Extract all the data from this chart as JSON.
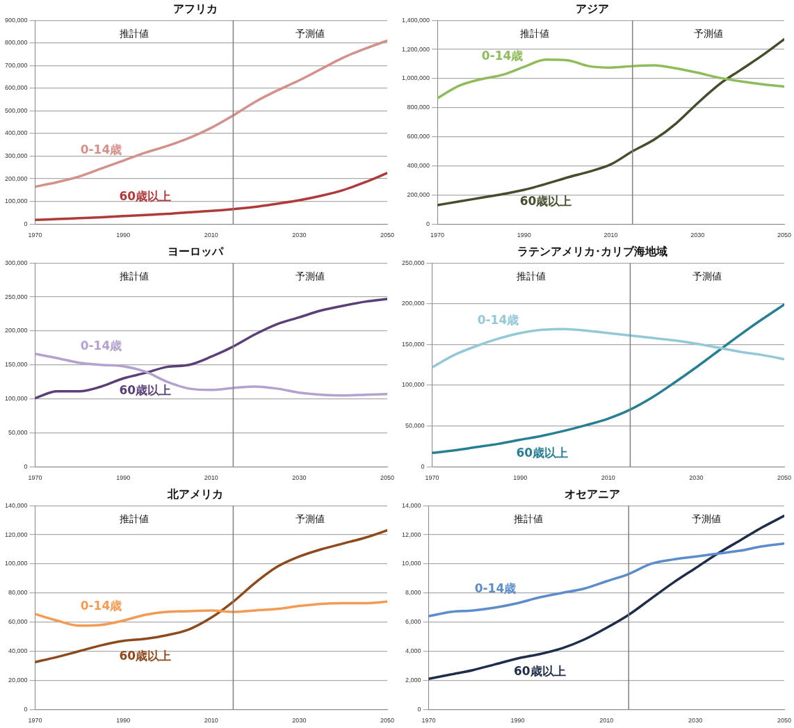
{
  "chart_data": [
    {
      "type": "line",
      "title": "アフリカ",
      "x": [
        1970,
        1975,
        1980,
        1985,
        1990,
        1995,
        2000,
        2005,
        2010,
        2015,
        2020,
        2025,
        2030,
        2035,
        2040,
        2045,
        2050
      ],
      "xlim": [
        1970,
        2050
      ],
      "xticks": [
        1970,
        1990,
        2010,
        2030,
        2050
      ],
      "ylim": [
        0,
        900000
      ],
      "yticks": [
        {
          "value": 0,
          "label": "0"
        },
        {
          "value": 100000,
          "label": "100,000"
        },
        {
          "value": 200000,
          "label": "200,000"
        },
        {
          "value": 300000,
          "label": "300,000"
        },
        {
          "value": 400000,
          "label": "400,000"
        },
        {
          "value": 500000,
          "label": "500,000"
        },
        {
          "value": 600000,
          "label": "600,000"
        },
        {
          "value": 700000,
          "label": "700,000"
        },
        {
          "value": 800000,
          "label": "800,000"
        },
        {
          "value": 900000,
          "label": "900,000"
        }
      ],
      "grid": "y",
      "legend": false,
      "marker": "none",
      "ref_lines": [
        {
          "axis": "x",
          "value": 2015,
          "color": "#808080"
        }
      ],
      "annotations": [
        "推計値",
        "予測値"
      ],
      "series": [
        {
          "name": "0-14歳",
          "color": "#d4908a",
          "values": [
            165000,
            185000,
            210000,
            245000,
            280000,
            315000,
            345000,
            380000,
            425000,
            480000,
            540000,
            590000,
            635000,
            685000,
            735000,
            775000,
            810000
          ]
        },
        {
          "name": "60歳以上",
          "color": "#b03a3a",
          "values": [
            18000,
            22000,
            26000,
            30000,
            35000,
            40000,
            45000,
            52000,
            58000,
            66000,
            76000,
            90000,
            105000,
            125000,
            150000,
            185000,
            225000
          ]
        }
      ]
    },
    {
      "type": "line",
      "title": "アジア",
      "x": [
        1970,
        1975,
        1980,
        1985,
        1990,
        1995,
        2000,
        2005,
        2010,
        2015,
        2020,
        2025,
        2030,
        2035,
        2040,
        2045,
        2050
      ],
      "xlim": [
        1970,
        2050
      ],
      "xticks": [
        1970,
        1990,
        2010,
        2030,
        2050
      ],
      "ylim": [
        0,
        1400000
      ],
      "yticks": [
        {
          "value": 0,
          "label": "0"
        },
        {
          "value": 200000,
          "label": "200,000"
        },
        {
          "value": 400000,
          "label": "400,000"
        },
        {
          "value": 600000,
          "label": "600,000"
        },
        {
          "value": 800000,
          "label": "800,000"
        },
        {
          "value": 1000000,
          "label": "1,000,000"
        },
        {
          "value": 1200000,
          "label": "1,200,000"
        },
        {
          "value": 1400000,
          "label": "1,400,000"
        }
      ],
      "grid": "y",
      "legend": false,
      "marker": "none",
      "ref_lines": [
        {
          "axis": "x",
          "value": 2015,
          "color": "#808080"
        }
      ],
      "annotations": [
        "推計値",
        "予測値"
      ],
      "series": [
        {
          "name": "0-14歳",
          "color": "#8fbc5a",
          "values": [
            865000,
            950000,
            995000,
            1025000,
            1080000,
            1130000,
            1125000,
            1085000,
            1075000,
            1085000,
            1090000,
            1070000,
            1040000,
            1005000,
            980000,
            960000,
            945000
          ]
        },
        {
          "name": "60歳以上",
          "color": "#434e2c",
          "values": [
            130000,
            155000,
            180000,
            205000,
            235000,
            275000,
            320000,
            360000,
            410000,
            500000,
            580000,
            690000,
            830000,
            960000,
            1060000,
            1160000,
            1270000
          ]
        }
      ]
    },
    {
      "type": "line",
      "title": "ヨーロッパ",
      "x": [
        1970,
        1975,
        1980,
        1985,
        1990,
        1995,
        2000,
        2005,
        2010,
        2015,
        2020,
        2025,
        2030,
        2035,
        2040,
        2045,
        2050
      ],
      "xlim": [
        1970,
        2050
      ],
      "xticks": [
        1970,
        1990,
        2010,
        2030,
        2050
      ],
      "ylim": [
        0,
        300000
      ],
      "yticks": [
        {
          "value": 0,
          "label": "0"
        },
        {
          "value": 50000,
          "label": "50,000"
        },
        {
          "value": 100000,
          "label": "100,000"
        },
        {
          "value": 150000,
          "label": "150,000"
        },
        {
          "value": 200000,
          "label": "200,000"
        },
        {
          "value": 250000,
          "label": "250,000"
        },
        {
          "value": 300000,
          "label": "300,000"
        }
      ],
      "grid": "y",
      "legend": false,
      "marker": "none",
      "ref_lines": [
        {
          "axis": "x",
          "value": 2015,
          "color": "#808080"
        }
      ],
      "annotations": [
        "推計値",
        "予測値"
      ],
      "series": [
        {
          "name": "0-14歳",
          "color": "#b3a2cf",
          "values": [
            166000,
            160000,
            153000,
            150000,
            148000,
            140000,
            125000,
            115000,
            113000,
            116000,
            118000,
            115000,
            109000,
            106000,
            105000,
            106000,
            107000
          ]
        },
        {
          "name": "60歳以上",
          "color": "#5a3f78",
          "values": [
            101000,
            111000,
            111000,
            118000,
            130000,
            138000,
            147000,
            150000,
            162000,
            177000,
            195000,
            210000,
            220000,
            230000,
            237000,
            243000,
            247000
          ]
        }
      ]
    },
    {
      "type": "line",
      "title": "ラテンアメリカ･カリブ海地域",
      "x": [
        1970,
        1975,
        1980,
        1985,
        1990,
        1995,
        2000,
        2005,
        2010,
        2015,
        2020,
        2025,
        2030,
        2035,
        2040,
        2045,
        2050
      ],
      "xlim": [
        1970,
        2050
      ],
      "xticks": [
        1970,
        1990,
        2010,
        2030,
        2050
      ],
      "ylim": [
        0,
        250000
      ],
      "yticks": [
        {
          "value": 0,
          "label": "0"
        },
        {
          "value": 50000,
          "label": "50,000"
        },
        {
          "value": 100000,
          "label": "100,000"
        },
        {
          "value": 150000,
          "label": "150,000"
        },
        {
          "value": 200000,
          "label": "200,000"
        },
        {
          "value": 250000,
          "label": "250,000"
        }
      ],
      "grid": "y",
      "legend": false,
      "marker": "none",
      "ref_lines": [
        {
          "axis": "x",
          "value": 2015,
          "color": "#808080"
        }
      ],
      "annotations": [
        "推計値",
        "予測値"
      ],
      "series": [
        {
          "name": "0-14歳",
          "color": "#93c9d6",
          "values": [
            122000,
            137000,
            148000,
            157000,
            164000,
            168000,
            169000,
            167000,
            164000,
            161000,
            158000,
            155000,
            151000,
            146000,
            141000,
            137000,
            132000
          ]
        },
        {
          "name": "60歳以上",
          "color": "#277f94",
          "values": [
            17000,
            20000,
            24000,
            28000,
            33000,
            38000,
            44000,
            51000,
            59000,
            70000,
            85000,
            103000,
            122000,
            142000,
            162000,
            181000,
            199000
          ]
        }
      ]
    },
    {
      "type": "line",
      "title": "北アメリカ",
      "x": [
        1970,
        1975,
        1980,
        1985,
        1990,
        1995,
        2000,
        2005,
        2010,
        2015,
        2020,
        2025,
        2030,
        2035,
        2040,
        2045,
        2050
      ],
      "xlim": [
        1970,
        2050
      ],
      "xticks": [
        1970,
        1990,
        2010,
        2030,
        2050
      ],
      "ylim": [
        0,
        140000
      ],
      "yticks": [
        {
          "value": 0,
          "label": "0"
        },
        {
          "value": 20000,
          "label": "20,000"
        },
        {
          "value": 40000,
          "label": "40,000"
        },
        {
          "value": 60000,
          "label": "60,000"
        },
        {
          "value": 80000,
          "label": "80,000"
        },
        {
          "value": 100000,
          "label": "100,000"
        },
        {
          "value": 120000,
          "label": "120,000"
        },
        {
          "value": 140000,
          "label": "140,000"
        }
      ],
      "grid": "y",
      "legend": false,
      "marker": "none",
      "ref_lines": [
        {
          "axis": "x",
          "value": 2015,
          "color": "#808080"
        }
      ],
      "annotations": [
        "推計値",
        "予測値"
      ],
      "series": [
        {
          "name": "0-14歳",
          "color": "#f39b52",
          "values": [
            65500,
            61000,
            57500,
            58000,
            61000,
            65000,
            67000,
            67500,
            68000,
            67000,
            68000,
            69000,
            71000,
            72500,
            73000,
            73000,
            74000
          ]
        },
        {
          "name": "60歳以上",
          "color": "#8e4a1c",
          "values": [
            32500,
            36000,
            40000,
            44000,
            47000,
            48500,
            51000,
            55000,
            63000,
            74000,
            87000,
            98000,
            105000,
            110000,
            114000,
            118000,
            123000
          ]
        }
      ]
    },
    {
      "type": "line",
      "title": "オセアニア",
      "x": [
        1970,
        1975,
        1980,
        1985,
        1990,
        1995,
        2000,
        2005,
        2010,
        2015,
        2020,
        2025,
        2030,
        2035,
        2040,
        2045,
        2050
      ],
      "xlim": [
        1970,
        2050
      ],
      "xticks": [
        1970,
        1990,
        2010,
        2030,
        2050
      ],
      "ylim": [
        0,
        14000
      ],
      "yticks": [
        {
          "value": 0,
          "label": "0"
        },
        {
          "value": 2000,
          "label": "2,000"
        },
        {
          "value": 4000,
          "label": "4,000"
        },
        {
          "value": 6000,
          "label": "6,000"
        },
        {
          "value": 8000,
          "label": "8,000"
        },
        {
          "value": 10000,
          "label": "10,000"
        },
        {
          "value": 12000,
          "label": "12,000"
        },
        {
          "value": 14000,
          "label": "14,000"
        }
      ],
      "grid": "y",
      "legend": false,
      "marker": "none",
      "ref_lines": [
        {
          "axis": "x",
          "value": 2015,
          "color": "#808080"
        }
      ],
      "annotations": [
        "推計値",
        "予測値"
      ],
      "series": [
        {
          "name": "0-14歳",
          "color": "#5b8ccc",
          "values": [
            6400,
            6700,
            6800,
            7000,
            7300,
            7700,
            8000,
            8300,
            8800,
            9300,
            10000,
            10300,
            10500,
            10700,
            10900,
            11200,
            11400
          ]
        },
        {
          "name": "60歳以上",
          "color": "#1f2d4a",
          "values": [
            2100,
            2400,
            2700,
            3100,
            3500,
            3800,
            4200,
            4800,
            5600,
            6500,
            7600,
            8700,
            9700,
            10700,
            11600,
            12500,
            13300
          ]
        }
      ]
    }
  ]
}
